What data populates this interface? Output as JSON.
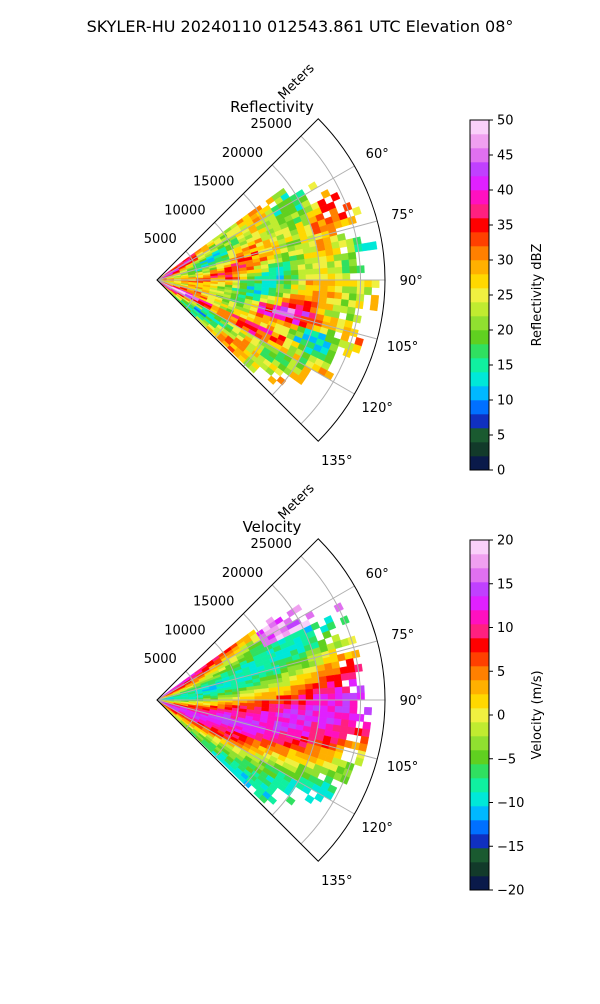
{
  "figure": {
    "title": "SKYLER-HU  20240110  012543.861 UTC Elevation 08°"
  },
  "chart_data": [
    {
      "type": "heatmap",
      "projection": "polar-sector",
      "title": "Reflectivity",
      "radial_label": "Meters",
      "radial_ticks": [
        5000,
        10000,
        15000,
        20000,
        25000
      ],
      "radial_tick_labels": [
        "5000",
        "10000",
        "15000",
        "20000",
        "25000"
      ],
      "rlim": [
        0,
        28000
      ],
      "theta_ticks_deg": [
        60,
        75,
        90,
        105,
        120,
        135
      ],
      "theta_tick_labels": [
        "60°",
        "75°",
        "90°",
        "105°",
        "120°",
        "135°"
      ],
      "theta_range_deg": [
        45,
        135
      ],
      "data_azimuth_range_deg": [
        54,
        134
      ],
      "grid": true,
      "colorbar": {
        "label": "Reflectivity dBZ",
        "range": [
          0,
          50
        ],
        "ticks": [
          0,
          5,
          10,
          15,
          20,
          25,
          30,
          35,
          40,
          45,
          50
        ],
        "tick_labels": [
          "0",
          "5",
          "10",
          "15",
          "20",
          "25",
          "30",
          "35",
          "40",
          "45",
          "50"
        ],
        "colors": [
          "#0a1a4a",
          "#123a2a",
          "#1a5a30",
          "#1030c0",
          "#0070ff",
          "#00b8ff",
          "#00e8d8",
          "#10f0a0",
          "#30e060",
          "#60d020",
          "#90e030",
          "#c0ec30",
          "#f0f040",
          "#ffd800",
          "#ffb000",
          "#ff8000",
          "#ff4000",
          "#ff0000",
          "#ff2080",
          "#ff10c0",
          "#e020ff",
          "#c040ff",
          "#e070f0",
          "#f0a0f0",
          "#fad0fa"
        ]
      }
    },
    {
      "type": "heatmap",
      "projection": "polar-sector",
      "title": "Velocity",
      "radial_label": "Meters",
      "radial_ticks": [
        5000,
        10000,
        15000,
        20000,
        25000
      ],
      "radial_tick_labels": [
        "5000",
        "10000",
        "15000",
        "20000",
        "25000"
      ],
      "rlim": [
        0,
        28000
      ],
      "theta_ticks_deg": [
        60,
        75,
        90,
        105,
        120,
        135
      ],
      "theta_tick_labels": [
        "60°",
        "75°",
        "90°",
        "105°",
        "120°",
        "135°"
      ],
      "theta_range_deg": [
        45,
        135
      ],
      "data_azimuth_range_deg": [
        54,
        134
      ],
      "grid": true,
      "colorbar": {
        "label": "Velocity (m/s)",
        "range": [
          -20,
          20
        ],
        "ticks": [
          -20,
          -15,
          -10,
          -5,
          0,
          5,
          10,
          15,
          20
        ],
        "tick_labels": [
          "−20",
          "−15",
          "−10",
          "−5",
          "0",
          "5",
          "10",
          "15",
          "20"
        ],
        "colors": [
          "#0a1a4a",
          "#123a2a",
          "#1a5a30",
          "#1030c0",
          "#0070ff",
          "#00b8ff",
          "#00e8d8",
          "#10f0a0",
          "#30e060",
          "#60d020",
          "#90e030",
          "#c0ec30",
          "#f0f040",
          "#ffd800",
          "#ffb000",
          "#ff8000",
          "#ff4000",
          "#ff0000",
          "#ff2080",
          "#ff10c0",
          "#e020ff",
          "#c040ff",
          "#e070f0",
          "#f0a0f0",
          "#fad0fa"
        ]
      }
    }
  ]
}
